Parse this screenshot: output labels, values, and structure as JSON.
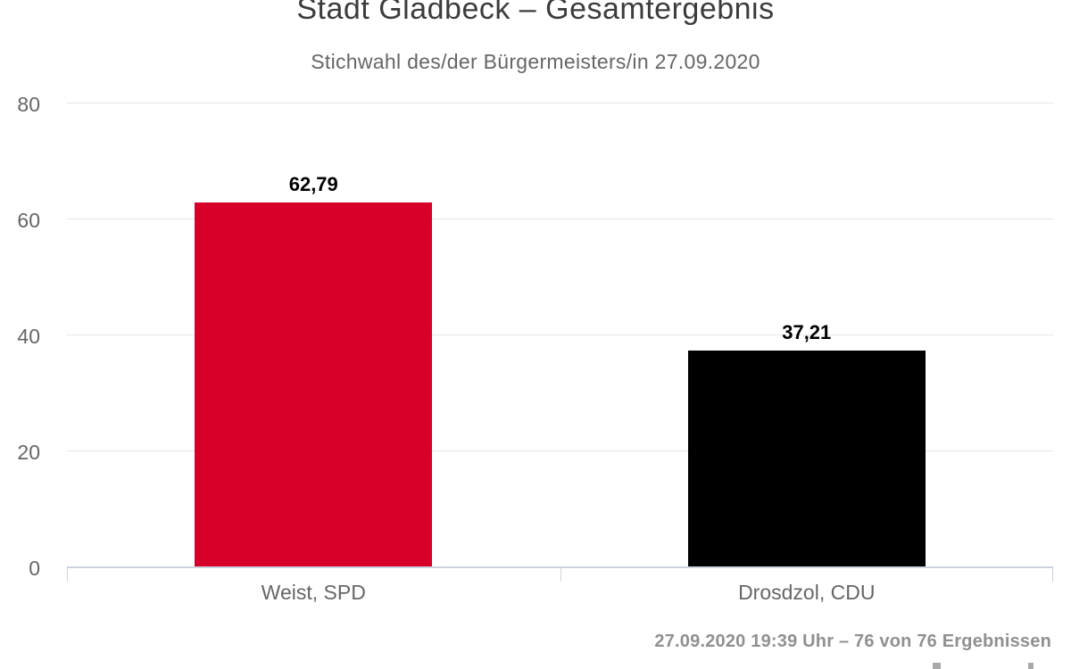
{
  "chart_data": {
    "type": "bar",
    "title": "Stadt Gladbeck – Gesamtergebnis",
    "subtitle": "Stichwahl des/der Bürgermeisters/in 27.09.2020",
    "categories": [
      "Weist, SPD",
      "Drosdzol, CDU"
    ],
    "values": [
      62.79,
      37.21
    ],
    "value_labels": [
      "62,79",
      "37,21"
    ],
    "series_colors": [
      "#d60029",
      "#000000"
    ],
    "xlabel": "",
    "ylabel": "",
    "ylim": [
      0,
      80
    ],
    "yticks": [
      0,
      20,
      40,
      60,
      80
    ],
    "grid": true,
    "legend": false
  },
  "footer": {
    "status_line": "27.09.2020 19:39 Uhr – 76 von 76 Ergebnissen"
  },
  "colors": {
    "bar_spd": "#d60029",
    "bar_cdu": "#000000",
    "grid_line": "#e6e6e6",
    "axis_line": "#ccd2de",
    "title_text": "#3c3c3c",
    "muted_text": "#666666",
    "footer_text": "#909090"
  }
}
